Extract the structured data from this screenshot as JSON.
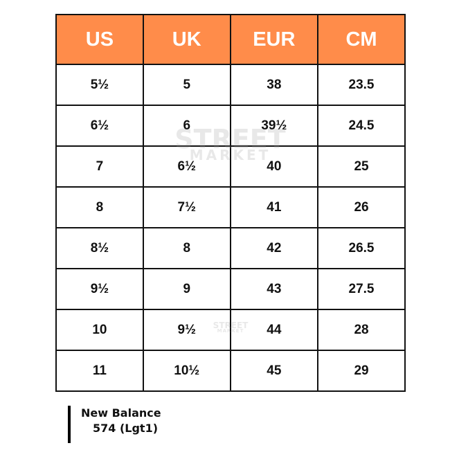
{
  "table": {
    "headers": [
      "US",
      "UK",
      "EUR",
      "CM"
    ],
    "header_color": "#FF8C4A",
    "rows": [
      [
        "5½",
        "5",
        "38",
        "23.5"
      ],
      [
        "6½",
        "6",
        "39½",
        "24.5"
      ],
      [
        "7",
        "6½",
        "40",
        "25"
      ],
      [
        "8",
        "7½",
        "41",
        "26"
      ],
      [
        "8½",
        "8",
        "42",
        "26.5"
      ],
      [
        "9½",
        "9",
        "43",
        "27.5"
      ],
      [
        "10",
        "9½",
        "44",
        "28"
      ],
      [
        "11",
        "10½",
        "45",
        "29"
      ]
    ]
  },
  "watermark": {
    "line1": "STREET",
    "line2": "MARKET"
  },
  "caption": {
    "line1": "New Balance",
    "line2": "574 (Lgt1)"
  }
}
